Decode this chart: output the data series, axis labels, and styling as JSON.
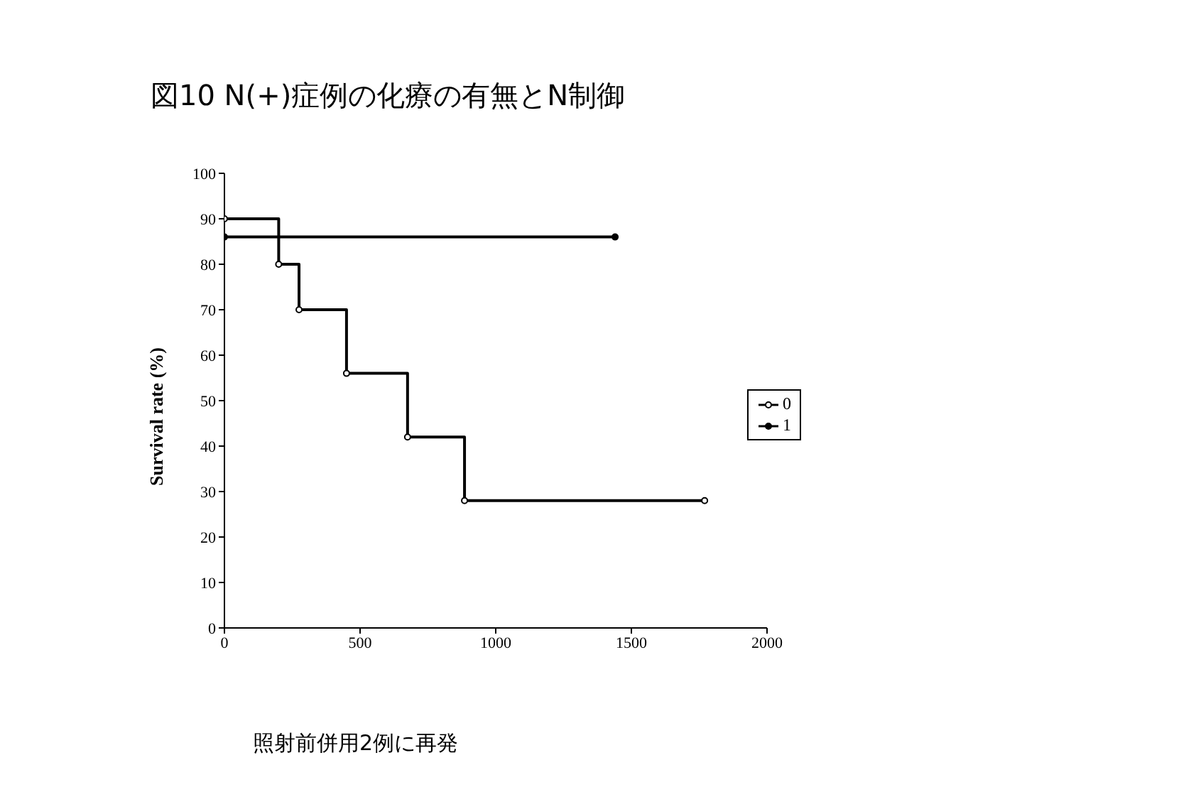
{
  "chart_data": {
    "type": "step",
    "title": "図10  N(+)症例の化療の有無とN制御",
    "ylabel": "Survival rate (%)",
    "annotations": [
      "照射前併用2例に再発"
    ],
    "series": [
      {
        "name": "0",
        "color": "#000000",
        "x": [
          0,
          200,
          275,
          450,
          675,
          885,
          1770
        ],
        "values": [
          90,
          80,
          70,
          56,
          42,
          28,
          28
        ]
      },
      {
        "name": "1",
        "color": "#000000",
        "x": [
          0,
          1440
        ],
        "values": [
          86,
          86
        ]
      }
    ],
    "xlim": [
      0,
      2000
    ],
    "xticks": [
      0,
      500,
      1000,
      1500,
      2000
    ],
    "ylim": [
      0,
      100
    ],
    "yticks": [
      0,
      10,
      20,
      30,
      40,
      50,
      60,
      70,
      80,
      90,
      100
    ],
    "grid": false,
    "legend": "right",
    "marker": "circle",
    "line_style": "solid"
  }
}
